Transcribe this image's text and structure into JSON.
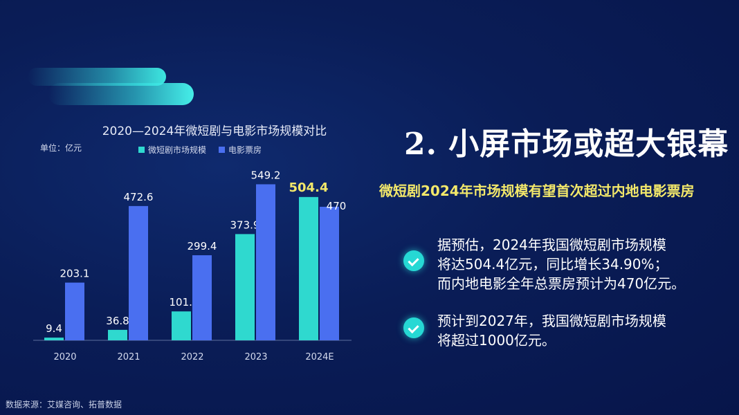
{
  "chart_data": {
    "type": "bar",
    "title": "2020—2024年微短剧与电影市场规模对比",
    "unit": "单位：亿元",
    "categories": [
      "2020",
      "2021",
      "2022",
      "2023",
      "2024E"
    ],
    "series": [
      {
        "name": "微短剧市场规模",
        "color": "#2fd9cf",
        "values": [
          9.4,
          36.8,
          101.7,
          373.9,
          504.4
        ],
        "labels": [
          "9.4",
          "36.8",
          "101.7",
          "373.9",
          "504.4"
        ]
      },
      {
        "name": "电影票房",
        "color": "#4a6ff0",
        "values": [
          203.1,
          472.6,
          299.4,
          549.2,
          470
        ],
        "labels": [
          "203.1",
          "472.6",
          "299.4",
          "549.2",
          "470"
        ]
      }
    ],
    "ylim": [
      0,
      560
    ],
    "highlight_label_color": "#f3e86a"
  },
  "heading": "2. 小屏市场或超大银幕",
  "highlight": "微短剧2024年市场规模有望首次超过内地电影票房",
  "bullets": [
    {
      "lines": [
        "据预估，2024年我国微短剧市场规模",
        "将达504.4亿元，同比增长34.90%；",
        "而内地电影全年总票房预计为470亿元。"
      ]
    },
    {
      "lines": [
        "预计到2027年，我国微短剧市场规模",
        "将超过1000亿元。"
      ]
    }
  ],
  "source": "数据来源：艾媒咨询、拓普数据"
}
